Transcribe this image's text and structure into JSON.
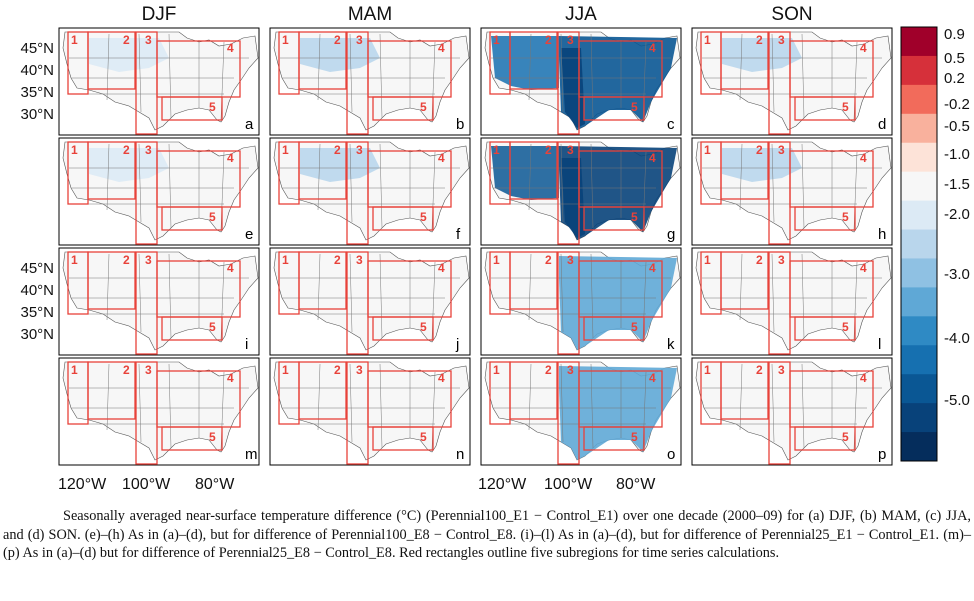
{
  "figure": {
    "column_titles": [
      "DJF",
      "MAM",
      "JJA",
      "SON"
    ],
    "panel_letters": [
      "a",
      "b",
      "c",
      "d",
      "e",
      "f",
      "g",
      "h",
      "i",
      "j",
      "k",
      "l",
      "m",
      "n",
      "o",
      "p"
    ],
    "latitude_labels": [
      "45°N",
      "40°N",
      "35°N",
      "30°N"
    ],
    "longitude_labels": [
      "120°W",
      "100°W",
      "80°W"
    ],
    "region_numbers": [
      "1",
      "2",
      "3",
      "4",
      "5"
    ],
    "colorbar": {
      "labels": [
        "0.9",
        "0.5",
        "0.2",
        "-0.2",
        "-0.5",
        "-1.0",
        "-1.5",
        "-2.0",
        "-3.0",
        "-4.0",
        "-5.0"
      ],
      "colors": [
        "#a0002a",
        "#d6303a",
        "#f26b5b",
        "#f9b19d",
        "#fde3d8",
        "#f7f7f7",
        "#dceaf5",
        "#b9d6ec",
        "#8fc1e3",
        "#5fa8d6",
        "#2f8ac4",
        "#1670b0",
        "#0a5794",
        "#08427a",
        "#052d5c"
      ]
    },
    "region_outline_color": "#e8423a"
  },
  "caption": "Seasonally averaged near-surface temperature difference (°C) (Perennial100_E1 − Control_E1) over one decade (2000–09) for (a) DJF, (b) MAM, (c) JJA, and (d) SON. (e)–(h) As in (a)–(d), but for difference of Perennial100_E8 − Control_E8. (i)–(l) As in (a)–(d), but for difference of Perennial25_E1 − Control_E1. (m)–(p) As in (a)–(d) but for difference of Perennial25_E8 − Control_E8. Red rectangles outline five subregions for time series calculations."
}
